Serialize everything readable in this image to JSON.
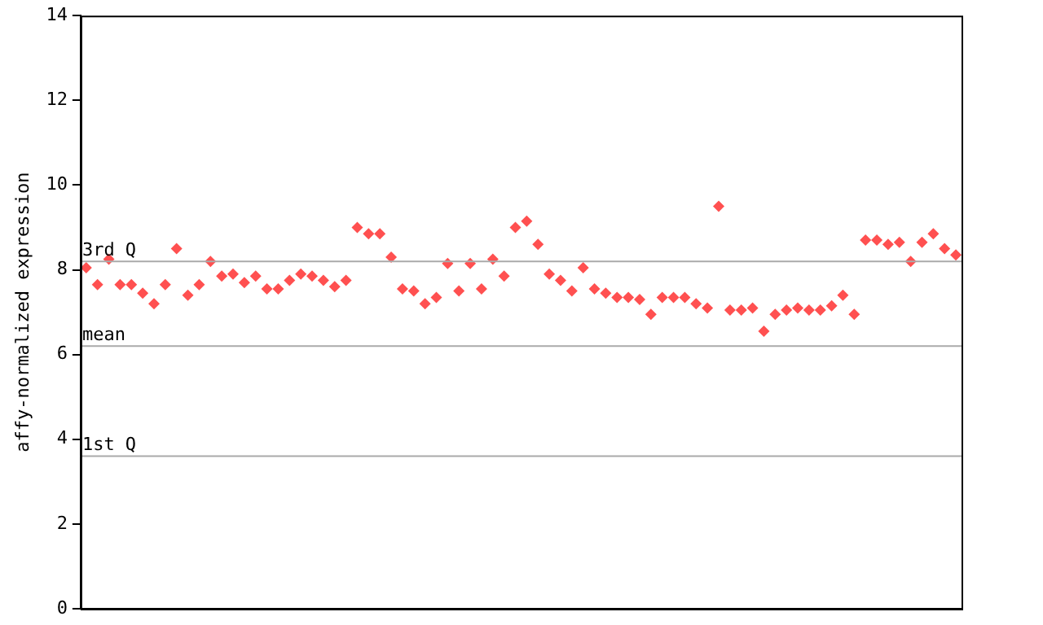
{
  "chart_data": {
    "type": "scatter",
    "ylabel": "affy-normalized expression",
    "marker": "diamond",
    "tick_labels": "y",
    "categories": [
      null,
      null,
      null,
      null,
      null,
      null,
      null,
      null,
      null,
      null,
      null,
      null,
      null,
      null,
      null,
      null,
      null,
      null,
      null,
      null,
      null,
      null,
      null,
      null,
      null,
      null,
      null,
      null,
      null,
      null,
      null,
      null,
      null,
      null,
      null,
      null,
      null,
      null,
      null,
      null,
      null,
      null,
      null,
      null,
      null,
      null,
      null,
      null,
      null,
      null,
      null,
      null,
      null,
      null,
      null,
      null,
      null,
      null,
      null,
      null,
      null,
      null,
      null,
      null,
      null,
      null,
      null,
      null,
      null,
      null,
      null,
      null,
      null,
      null,
      null,
      null,
      null,
      null
    ],
    "ylim": [
      0,
      14
    ],
    "yticks": [
      0,
      2,
      4,
      6,
      8,
      10,
      12,
      14
    ],
    "ref_lines": [
      {
        "axis": "y",
        "value": 8.2,
        "label": "3rd Q",
        "color": "#aaaaaa"
      },
      {
        "axis": "y",
        "value": 6.2,
        "label": "mean",
        "color": "#aaaaaa"
      },
      {
        "axis": "y",
        "value": 3.6,
        "label": "1st Q",
        "color": "#aaaaaa"
      }
    ],
    "series": [
      {
        "color": "#ff5050",
        "values": [
          8.05,
          7.65,
          8.25,
          7.65,
          7.65,
          7.45,
          7.2,
          7.65,
          8.5,
          7.4,
          7.65,
          8.2,
          7.85,
          7.9,
          7.7,
          7.85,
          7.55,
          7.55,
          7.75,
          7.9,
          7.85,
          7.75,
          7.6,
          7.75,
          9.0,
          8.85,
          8.85,
          8.3,
          7.55,
          7.5,
          7.2,
          7.35,
          8.15,
          7.5,
          8.15,
          7.55,
          8.25,
          7.85,
          9.0,
          9.15,
          8.6,
          7.9,
          7.75,
          7.5,
          8.05,
          7.55,
          7.45,
          7.35,
          7.35,
          7.3,
          6.95,
          7.35,
          7.35,
          7.35,
          7.2,
          7.1,
          9.5,
          7.05,
          7.05,
          7.1,
          6.55,
          6.95,
          7.05,
          7.1,
          7.05,
          7.05,
          7.15,
          7.4,
          6.95,
          8.7,
          8.7,
          8.6,
          8.65,
          8.2,
          8.65,
          8.85,
          8.5,
          8.35
        ]
      }
    ]
  }
}
